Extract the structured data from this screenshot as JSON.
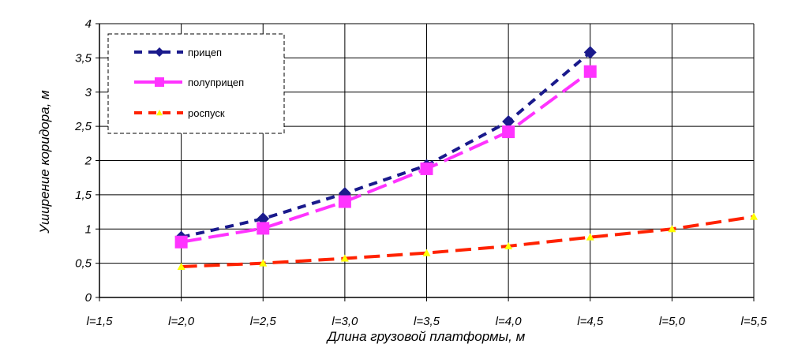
{
  "chart_data": {
    "type": "line",
    "xlabel": "Длина грузовой платформы, м",
    "ylabel": "Уширение коридора, м",
    "categories": [
      "l=1,5",
      "l=2,0",
      "l=2,5",
      "l=3,0",
      "l=3,5",
      "l=4,0",
      "l=4,5",
      "l=5,0",
      "l=5,5"
    ],
    "y_ticks": [
      "0",
      "0,5",
      "1",
      "1,5",
      "2",
      "2,5",
      "3",
      "3,5",
      "4"
    ],
    "ylim": [
      0,
      4
    ],
    "grid": true,
    "legend_position": "top-left",
    "series": [
      {
        "name": "прицеп",
        "color": "#1a1a8c",
        "marker": "diamond",
        "values": [
          null,
          0.88,
          1.15,
          1.52,
          1.93,
          2.57,
          3.58,
          null,
          null
        ]
      },
      {
        "name": "полуприцеп",
        "color": "#ff33ff",
        "marker": "square",
        "values": [
          null,
          0.81,
          1.01,
          1.4,
          1.88,
          2.42,
          3.3,
          null,
          null
        ]
      },
      {
        "name": "роспуск",
        "color": "#ff2200",
        "marker": "triangle",
        "marker_color": "#ffff00",
        "values": [
          null,
          0.45,
          0.5,
          0.57,
          0.65,
          0.75,
          0.88,
          1.0,
          1.18
        ]
      }
    ]
  }
}
